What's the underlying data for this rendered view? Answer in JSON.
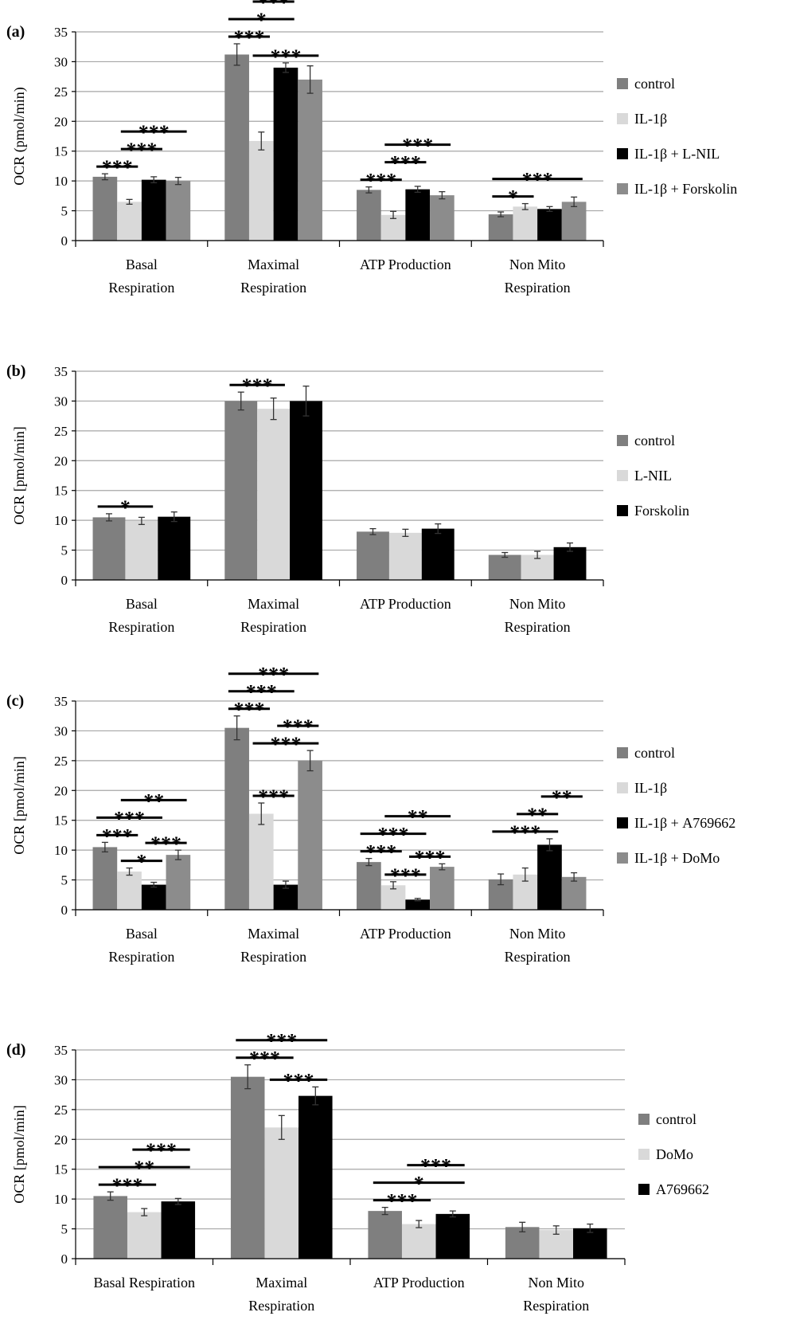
{
  "chart_data": [
    {
      "type": "bar",
      "panel": "(a)",
      "ylabel": "OCR (pmol/min)",
      "categories": [
        [
          "Basal",
          "Respiration"
        ],
        [
          "Maximal",
          "Respiration"
        ],
        [
          "ATP Production"
        ],
        [
          "Non Mito",
          "Respiration"
        ]
      ],
      "ylim": [
        0,
        35
      ],
      "yticks": [
        0,
        5,
        10,
        15,
        20,
        25,
        30,
        35
      ],
      "grid": true,
      "series": [
        {
          "name": "control",
          "color": "#7f7f7f",
          "values": [
            10.7,
            31.2,
            8.5,
            4.4
          ],
          "errors": [
            0.5,
            1.8,
            0.5,
            0.4
          ]
        },
        {
          "name": "IL-1β",
          "color": "#d9d9d9",
          "values": [
            6.5,
            16.7,
            4.3,
            5.7
          ],
          "errors": [
            0.4,
            1.5,
            0.6,
            0.5
          ]
        },
        {
          "name": "IL-1β + L-NIL",
          "color": "#000000",
          "values": [
            10.2,
            29.0,
            8.6,
            5.3
          ],
          "errors": [
            0.5,
            0.8,
            0.5,
            0.4
          ]
        },
        {
          "name": "IL-1β + Forskolin",
          "color": "#8c8c8c",
          "values": [
            10.0,
            27.0,
            7.6,
            6.5
          ],
          "errors": [
            0.6,
            2.3,
            0.6,
            0.8
          ]
        }
      ],
      "annotations": [
        {
          "category": 0,
          "from": 0,
          "to": 1,
          "label": "***"
        },
        {
          "category": 0,
          "from": 1,
          "to": 2,
          "label": "***"
        },
        {
          "category": 0,
          "from": 1,
          "to": 3,
          "label": "***"
        },
        {
          "category": 1,
          "from": 0,
          "to": 1,
          "label": "***"
        },
        {
          "category": 1,
          "from": 0,
          "to": 2,
          "label": "*"
        },
        {
          "category": 1,
          "from": 1,
          "to": 3,
          "label": "***"
        },
        {
          "category": 1,
          "from": 1,
          "to": 2,
          "label": "***"
        },
        {
          "category": 2,
          "from": 0,
          "to": 1,
          "label": "***"
        },
        {
          "category": 2,
          "from": 1,
          "to": 2,
          "label": "***"
        },
        {
          "category": 2,
          "from": 1,
          "to": 3,
          "label": "***"
        },
        {
          "category": 3,
          "from": 0,
          "to": 1,
          "label": "*"
        },
        {
          "category": 3,
          "from": 0,
          "to": 3,
          "label": "***"
        }
      ]
    },
    {
      "type": "bar",
      "panel": "(b)",
      "ylabel": "OCR [pmol/min]",
      "categories": [
        [
          "Basal",
          "Respiration"
        ],
        [
          "Maximal",
          "Respiration"
        ],
        [
          "ATP Production"
        ],
        [
          "Non Mito",
          "Respiration"
        ]
      ],
      "ylim": [
        0,
        35
      ],
      "yticks": [
        0,
        5,
        10,
        15,
        20,
        25,
        30,
        35
      ],
      "grid": true,
      "series": [
        {
          "name": "control",
          "color": "#7f7f7f",
          "values": [
            10.5,
            30.0,
            8.1,
            4.2
          ],
          "errors": [
            0.6,
            1.5,
            0.5,
            0.4
          ]
        },
        {
          "name": "L-NIL",
          "color": "#d9d9d9",
          "values": [
            9.9,
            28.7,
            7.9,
            4.2
          ],
          "errors": [
            0.6,
            1.8,
            0.6,
            0.6
          ]
        },
        {
          "name": "Forskolin",
          "color": "#000000",
          "values": [
            10.6,
            30.0,
            8.6,
            5.5
          ],
          "errors": [
            0.8,
            2.5,
            0.8,
            0.7
          ]
        }
      ],
      "annotations": [
        {
          "category": 0,
          "from": 0,
          "to": 1,
          "label": "*"
        },
        {
          "category": 1,
          "from": 0,
          "to": 1,
          "label": "***"
        }
      ]
    },
    {
      "type": "bar",
      "panel": "(c)",
      "ylabel": "OCR [pmol/min]",
      "categories": [
        [
          "Basal",
          "Respiration"
        ],
        [
          "Maximal",
          "Respiration"
        ],
        [
          "ATP Production"
        ],
        [
          "Non Mito",
          "Respiration"
        ]
      ],
      "ylim": [
        0,
        35
      ],
      "yticks": [
        0,
        5,
        10,
        15,
        20,
        25,
        30,
        35
      ],
      "grid": true,
      "series": [
        {
          "name": "control",
          "color": "#7f7f7f",
          "values": [
            10.5,
            30.5,
            8.0,
            5.1
          ],
          "errors": [
            0.8,
            2.0,
            0.6,
            0.9
          ]
        },
        {
          "name": "IL-1β",
          "color": "#d9d9d9",
          "values": [
            6.4,
            16.1,
            4.1,
            5.9
          ],
          "errors": [
            0.6,
            1.8,
            0.6,
            1.1
          ]
        },
        {
          "name": "IL-1β + A769662",
          "color": "#000000",
          "values": [
            4.2,
            4.2,
            1.7,
            10.9
          ],
          "errors": [
            0.4,
            0.6,
            0.2,
            1.0
          ]
        },
        {
          "name": "IL-1β + DoMo",
          "color": "#8c8c8c",
          "values": [
            9.2,
            25.0,
            7.2,
            5.5
          ],
          "errors": [
            0.8,
            1.7,
            0.5,
            0.7
          ]
        }
      ],
      "annotations": [
        {
          "category": 0,
          "from": 0,
          "to": 1,
          "label": "***"
        },
        {
          "category": 0,
          "from": 0,
          "to": 2,
          "label": "***"
        },
        {
          "category": 0,
          "from": 1,
          "to": 2,
          "label": "*"
        },
        {
          "category": 0,
          "from": 1,
          "to": 3,
          "label": "**"
        },
        {
          "category": 0,
          "from": 2,
          "to": 3,
          "label": "***"
        },
        {
          "category": 1,
          "from": 0,
          "to": 1,
          "label": "***"
        },
        {
          "category": 1,
          "from": 0,
          "to": 2,
          "label": "***"
        },
        {
          "category": 1,
          "from": 0,
          "to": 3,
          "label": "***"
        },
        {
          "category": 1,
          "from": 1,
          "to": 2,
          "label": "***"
        },
        {
          "category": 1,
          "from": 1,
          "to": 3,
          "label": "***"
        },
        {
          "category": 1,
          "from": 2,
          "to": 3,
          "label": "***"
        },
        {
          "category": 2,
          "from": 0,
          "to": 1,
          "label": "***"
        },
        {
          "category": 2,
          "from": 0,
          "to": 2,
          "label": "***"
        },
        {
          "category": 2,
          "from": 1,
          "to": 2,
          "label": "***"
        },
        {
          "category": 2,
          "from": 1,
          "to": 3,
          "label": "**"
        },
        {
          "category": 2,
          "from": 2,
          "to": 3,
          "label": "***"
        },
        {
          "category": 3,
          "from": 0,
          "to": 2,
          "label": "***"
        },
        {
          "category": 3,
          "from": 1,
          "to": 2,
          "label": "**"
        },
        {
          "category": 3,
          "from": 2,
          "to": 3,
          "label": "**"
        }
      ]
    },
    {
      "type": "bar",
      "panel": "(d)",
      "ylabel": "OCR [pmol/min]",
      "categories": [
        [
          "Basal Respiration"
        ],
        [
          "Maximal",
          "Respiration"
        ],
        [
          "ATP Production"
        ],
        [
          "Non Mito",
          "Respiration"
        ]
      ],
      "ylim": [
        0,
        35
      ],
      "yticks": [
        0,
        5,
        10,
        15,
        20,
        25,
        30,
        35
      ],
      "grid": true,
      "series": [
        {
          "name": "control",
          "color": "#7f7f7f",
          "values": [
            10.5,
            30.5,
            8.0,
            5.3
          ],
          "errors": [
            0.7,
            2.0,
            0.6,
            0.8
          ]
        },
        {
          "name": "DoMo",
          "color": "#d9d9d9",
          "values": [
            7.8,
            22.0,
            5.8,
            4.8
          ],
          "errors": [
            0.6,
            2.0,
            0.6,
            0.7
          ]
        },
        {
          "name": "A769662",
          "color": "#000000",
          "values": [
            9.6,
            27.3,
            7.5,
            5.1
          ],
          "errors": [
            0.5,
            1.5,
            0.5,
            0.7
          ]
        }
      ],
      "annotations": [
        {
          "category": 0,
          "from": 0,
          "to": 1,
          "label": "***"
        },
        {
          "category": 0,
          "from": 0,
          "to": 2,
          "label": "**"
        },
        {
          "category": 0,
          "from": 1,
          "to": 2,
          "label": "***"
        },
        {
          "category": 1,
          "from": 0,
          "to": 1,
          "label": "***"
        },
        {
          "category": 1,
          "from": 0,
          "to": 2,
          "label": "***"
        },
        {
          "category": 1,
          "from": 1,
          "to": 2,
          "label": "***"
        },
        {
          "category": 2,
          "from": 0,
          "to": 1,
          "label": "***"
        },
        {
          "category": 2,
          "from": 0,
          "to": 2,
          "label": "*"
        },
        {
          "category": 2,
          "from": 1,
          "to": 2,
          "label": "***"
        }
      ]
    }
  ]
}
